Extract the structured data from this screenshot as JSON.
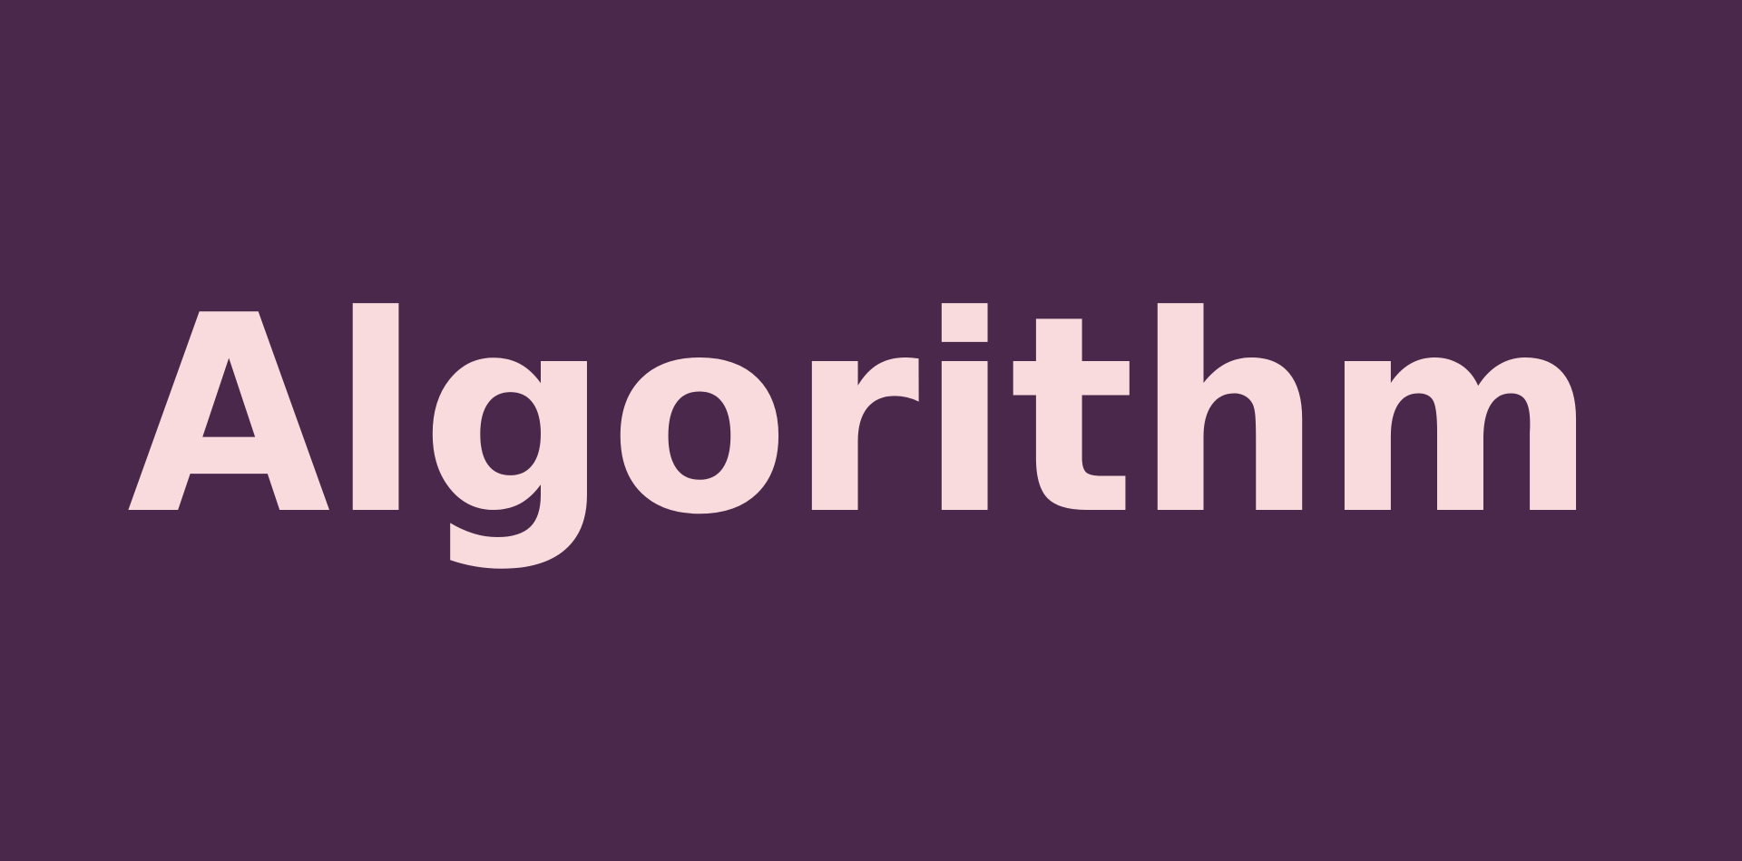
{
  "background_color": "#4a284b",
  "text_color": "#f9dadd",
  "headline": {
    "text": "Algorithm"
  }
}
